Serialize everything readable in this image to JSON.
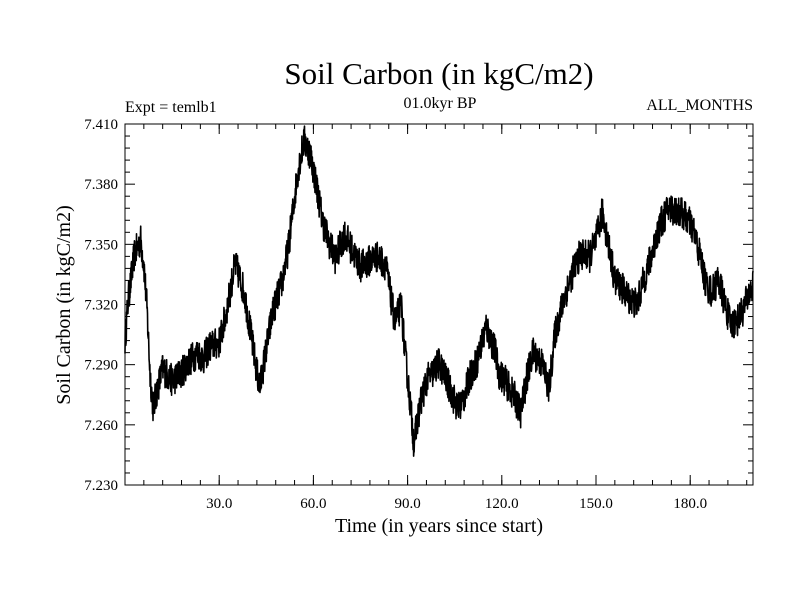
{
  "chart_data": {
    "type": "line",
    "title": "Soil Carbon (in kgC/m2)",
    "subtitle": "01.0kyr BP",
    "experiment_label": "Expt = temlb1",
    "months_label": "ALL_MONTHS",
    "xlabel": "Time (in years since start)",
    "ylabel": "Soil Carbon (in kgC/m2)",
    "xlim": [
      0,
      200
    ],
    "ylim": [
      7.23,
      7.41
    ],
    "x_ticks": [
      30,
      60,
      90,
      120,
      150,
      180
    ],
    "x_tick_labels": [
      "30.0",
      "60.0",
      "90.0",
      "120.0",
      "150.0",
      "180.0"
    ],
    "y_ticks": [
      7.23,
      7.26,
      7.29,
      7.32,
      7.35,
      7.38,
      7.41
    ],
    "y_tick_labels": [
      "7.230",
      "7.260",
      "7.290",
      "7.320",
      "7.350",
      "7.380",
      "7.410"
    ],
    "series": [
      {
        "name": "Soil Carbon",
        "color": "#000000",
        "x": [
          0,
          1,
          3,
          5,
          6,
          7,
          8,
          9,
          10,
          12,
          15,
          18,
          20,
          23,
          25,
          27,
          30,
          32,
          34,
          35,
          36,
          38,
          40,
          42,
          43,
          45,
          47,
          50,
          52,
          55,
          57,
          59,
          61,
          63,
          65,
          67,
          70,
          72,
          75,
          78,
          80,
          83,
          85,
          86,
          88,
          89,
          91,
          92,
          94,
          96,
          98,
          100,
          103,
          106,
          108,
          110,
          112,
          115,
          118,
          119,
          121,
          124,
          126,
          128,
          130,
          133,
          135,
          137,
          139,
          140,
          143,
          145,
          148,
          150,
          152,
          154,
          156,
          158,
          160,
          163,
          165,
          167,
          170,
          173,
          175,
          177,
          179,
          181,
          183,
          185,
          187,
          189,
          191,
          193,
          195,
          197,
          200
        ],
        "values": [
          7.302,
          7.322,
          7.345,
          7.352,
          7.34,
          7.318,
          7.285,
          7.268,
          7.276,
          7.288,
          7.282,
          7.286,
          7.291,
          7.296,
          7.293,
          7.299,
          7.301,
          7.314,
          7.331,
          7.34,
          7.336,
          7.326,
          7.306,
          7.286,
          7.279,
          7.298,
          7.316,
          7.331,
          7.348,
          7.386,
          7.402,
          7.395,
          7.379,
          7.361,
          7.351,
          7.343,
          7.355,
          7.348,
          7.339,
          7.342,
          7.344,
          7.34,
          7.32,
          7.311,
          7.32,
          7.299,
          7.268,
          7.251,
          7.27,
          7.282,
          7.286,
          7.291,
          7.28,
          7.268,
          7.274,
          7.285,
          7.291,
          7.309,
          7.296,
          7.286,
          7.282,
          7.274,
          7.266,
          7.284,
          7.296,
          7.29,
          7.278,
          7.306,
          7.318,
          7.324,
          7.338,
          7.345,
          7.344,
          7.352,
          7.366,
          7.35,
          7.332,
          7.329,
          7.324,
          7.32,
          7.331,
          7.341,
          7.358,
          7.368,
          7.367,
          7.366,
          7.363,
          7.357,
          7.345,
          7.33,
          7.326,
          7.333,
          7.32,
          7.31,
          7.312,
          7.318,
          7.33
        ]
      }
    ]
  }
}
